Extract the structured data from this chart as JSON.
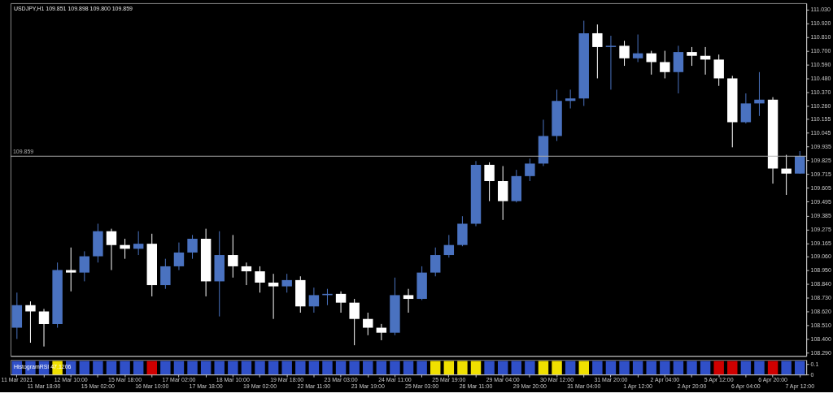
{
  "chart_data": [
    {
      "type": "candlestick",
      "title": "USDJPY,H1  109.851 109.898 109.800 109.859",
      "categories": [
        null,
        null,
        null,
        null,
        null,
        null,
        null,
        null,
        null,
        null,
        null,
        null,
        null,
        null,
        null,
        null,
        null,
        null,
        null,
        null,
        null,
        null,
        null,
        null,
        null,
        null,
        null,
        null,
        null,
        null,
        null,
        null,
        null,
        null,
        null,
        null,
        null,
        null,
        null,
        null,
        null,
        null,
        null,
        null,
        null,
        null,
        null,
        null,
        null,
        null,
        null,
        null,
        null,
        null,
        null,
        null,
        null,
        null,
        null
      ],
      "ohlc": [
        [
          108.49,
          108.77,
          108.4,
          108.67
        ],
        [
          108.67,
          108.7,
          108.37,
          108.62
        ],
        [
          108.62,
          108.64,
          108.34,
          108.52
        ],
        [
          108.52,
          109.01,
          108.49,
          108.95
        ],
        [
          108.95,
          109.13,
          108.78,
          108.93
        ],
        [
          108.93,
          109.1,
          108.86,
          109.06
        ],
        [
          109.06,
          109.32,
          109.01,
          109.26
        ],
        [
          109.26,
          109.28,
          108.95,
          109.15
        ],
        [
          109.15,
          109.2,
          109.04,
          109.12
        ],
        [
          109.12,
          109.26,
          109.07,
          109.16
        ],
        [
          109.16,
          109.24,
          108.74,
          108.83
        ],
        [
          108.83,
          109.04,
          108.8,
          108.98
        ],
        [
          108.98,
          109.17,
          108.95,
          109.09
        ],
        [
          109.09,
          109.23,
          109.04,
          109.2
        ],
        [
          109.2,
          109.28,
          108.74,
          108.86
        ],
        [
          108.86,
          109.26,
          108.58,
          109.07
        ],
        [
          109.07,
          109.23,
          108.89,
          108.98
        ],
        [
          108.98,
          109.01,
          108.83,
          108.94
        ],
        [
          108.94,
          108.98,
          108.77,
          108.85
        ],
        [
          108.85,
          108.92,
          108.56,
          108.82
        ],
        [
          108.82,
          108.92,
          108.77,
          108.87
        ],
        [
          108.87,
          108.9,
          108.61,
          108.66
        ],
        [
          108.66,
          108.81,
          108.61,
          108.75
        ],
        [
          108.75,
          108.8,
          108.67,
          108.76
        ],
        [
          108.76,
          108.78,
          108.61,
          108.69
        ],
        [
          108.69,
          108.72,
          108.35,
          108.56
        ],
        [
          108.56,
          108.61,
          108.43,
          108.49
        ],
        [
          108.49,
          108.52,
          108.39,
          108.45
        ],
        [
          108.45,
          108.89,
          108.43,
          108.75
        ],
        [
          108.75,
          108.8,
          108.61,
          108.72
        ],
        [
          108.72,
          108.98,
          108.71,
          108.93
        ],
        [
          108.93,
          109.13,
          108.9,
          109.07
        ],
        [
          109.07,
          109.23,
          109.05,
          109.15
        ],
        [
          109.15,
          109.38,
          109.14,
          109.32
        ],
        [
          109.32,
          109.82,
          109.3,
          109.79
        ],
        [
          109.79,
          109.81,
          109.5,
          109.66
        ],
        [
          109.66,
          109.78,
          109.35,
          109.5
        ],
        [
          109.5,
          109.75,
          109.49,
          109.7
        ],
        [
          109.7,
          109.84,
          109.66,
          109.8
        ],
        [
          109.8,
          110.15,
          109.78,
          110.02
        ],
        [
          110.02,
          110.39,
          109.98,
          110.3
        ],
        [
          110.3,
          110.39,
          110.24,
          110.32
        ],
        [
          110.32,
          110.94,
          110.26,
          110.84
        ],
        [
          110.84,
          110.91,
          110.48,
          110.73
        ],
        [
          110.73,
          110.82,
          110.39,
          110.74
        ],
        [
          110.74,
          110.78,
          110.58,
          110.64
        ],
        [
          110.64,
          110.83,
          110.61,
          110.68
        ],
        [
          110.68,
          110.7,
          110.51,
          110.61
        ],
        [
          110.61,
          110.7,
          110.48,
          110.53
        ],
        [
          110.53,
          110.74,
          110.36,
          110.69
        ],
        [
          110.69,
          110.73,
          110.58,
          110.66
        ],
        [
          110.66,
          110.73,
          110.51,
          110.63
        ],
        [
          110.63,
          110.67,
          110.42,
          110.48
        ],
        [
          110.48,
          110.5,
          109.93,
          110.13
        ],
        [
          110.13,
          110.36,
          110.12,
          110.28
        ],
        [
          110.28,
          110.53,
          110.18,
          110.31
        ],
        [
          110.31,
          110.33,
          109.64,
          109.76
        ],
        [
          109.76,
          109.87,
          109.55,
          109.72
        ],
        [
          109.72,
          109.9,
          109.72,
          109.859
        ]
      ],
      "colors": [
        "#4a72c0",
        "#ffffff",
        "#ffffff",
        "#4a72c0",
        "#ffffff",
        "#4a72c0",
        "#4a72c0",
        "#ffffff",
        "#ffffff",
        "#4a72c0",
        "#ffffff",
        "#4a72c0",
        "#4a72c0",
        "#4a72c0",
        "#ffffff",
        "#4a72c0",
        "#ffffff",
        "#ffffff",
        "#ffffff",
        "#ffffff",
        "#4a72c0",
        "#ffffff",
        "#4a72c0",
        "#4a72c0",
        "#ffffff",
        "#ffffff",
        "#ffffff",
        "#ffffff",
        "#4a72c0",
        "#ffffff",
        "#4a72c0",
        "#4a72c0",
        "#4a72c0",
        "#4a72c0",
        "#4a72c0",
        "#ffffff",
        "#ffffff",
        "#4a72c0",
        "#4a72c0",
        "#4a72c0",
        "#4a72c0",
        "#4a72c0",
        "#4a72c0",
        "#ffffff",
        "#4a72c0",
        "#ffffff",
        "#4a72c0",
        "#ffffff",
        "#ffffff",
        "#4a72c0",
        "#ffffff",
        "#ffffff",
        "#ffffff",
        "#ffffff",
        "#4a72c0",
        "#4a72c0",
        "#ffffff",
        "#ffffff",
        "#4a72c0"
      ],
      "ylim": [
        108.265,
        111.08
      ],
      "yticks": [
        {
          "value": 108.29,
          "label": "108.290"
        },
        {
          "value": 108.4,
          "label": "108.400"
        },
        {
          "value": 108.51,
          "label": "108.510"
        },
        {
          "value": 108.62,
          "label": "108.620"
        },
        {
          "value": 108.73,
          "label": "108.730"
        },
        {
          "value": 108.84,
          "label": "108.840"
        },
        {
          "value": 108.95,
          "label": "108.950"
        },
        {
          "value": 109.06,
          "label": "109.060"
        },
        {
          "value": 109.165,
          "label": "109.165"
        },
        {
          "value": 109.275,
          "label": "109.275"
        },
        {
          "value": 109.385,
          "label": "109.385"
        },
        {
          "value": 109.495,
          "label": "109.495"
        },
        {
          "value": 109.605,
          "label": "109.605"
        },
        {
          "value": 109.715,
          "label": "109.715"
        },
        {
          "value": 109.825,
          "label": "109.825"
        },
        {
          "value": 109.935,
          "label": "109.935"
        },
        {
          "value": 110.045,
          "label": "110.045"
        },
        {
          "value": 110.155,
          "label": "110.155"
        },
        {
          "value": 110.26,
          "label": "110.260"
        },
        {
          "value": 110.37,
          "label": "110.370"
        },
        {
          "value": 110.48,
          "label": "110.480"
        },
        {
          "value": 110.59,
          "label": "110.590"
        },
        {
          "value": 110.7,
          "label": "110.700"
        },
        {
          "value": 110.81,
          "label": "110.810"
        },
        {
          "value": 110.92,
          "label": "110.920"
        },
        {
          "value": 111.03,
          "label": "111.030"
        }
      ],
      "ref_lines": [
        {
          "axis": "y",
          "value": 109.859,
          "label": "109.859",
          "color": "#b0b0b0"
        }
      ],
      "tick_labels": "y",
      "grid": false
    },
    {
      "type": "bar",
      "title": "HistogramRSI 47.1206",
      "categories": [
        "11 Mar 2021",
        null,
        "11 Mar 18:00",
        null,
        "12 Mar 10:00",
        null,
        "15 Mar 02:00",
        null,
        "15 Mar 18:00",
        null,
        "16 Mar 10:00",
        null,
        "17 Mar 02:00",
        null,
        "17 Mar 18:00",
        null,
        "18 Mar 10:00",
        null,
        "19 Mar 02:00",
        null,
        "19 Mar 18:00",
        null,
        "22 Mar 11:00",
        null,
        "23 Mar 03:00",
        null,
        "23 Mar 19:00",
        null,
        "24 Mar 11:00",
        null,
        "25 Mar 03:00",
        null,
        "25 Mar 19:00",
        null,
        "26 Mar 11:00",
        null,
        "29 Mar 04:00",
        null,
        "29 Mar 20:00",
        null,
        "30 Mar 12:00",
        null,
        "31 Mar 04:00",
        null,
        "31 Mar 20:00",
        null,
        "1 Apr 12:00",
        null,
        "2 Apr 04:00",
        null,
        "2 Apr 20:00",
        null,
        "5 Apr 12:00",
        null,
        "6 Apr 04:00",
        null,
        "6 Apr 20:00",
        null,
        "7 Apr 12:00"
      ],
      "values": [
        0.13,
        0.13,
        0.13,
        0.13,
        0.13,
        0.13,
        0.13,
        0.13,
        0.13,
        0.13,
        0.13,
        0.13,
        0.13,
        0.13,
        0.13,
        0.13,
        0.13,
        0.13,
        0.13,
        0.13,
        0.13,
        0.13,
        0.13,
        0.13,
        0.13,
        0.13,
        0.13,
        0.13,
        0.13,
        0.13,
        0.13,
        0.13,
        0.13,
        0.13,
        0.13,
        0.13,
        0.13,
        0.13,
        0.13,
        0.13,
        0.13,
        0.13,
        0.13,
        0.13,
        0.13,
        0.13,
        0.13,
        0.13,
        0.13,
        0.13,
        0.13,
        0.13,
        0.13,
        0.13,
        0.13,
        0.13,
        0.13,
        0.13,
        0.13
      ],
      "colors": [
        "#3050c8",
        "#3050c8",
        "#3050c8",
        "#f0e000",
        "#3050c8",
        "#3050c8",
        "#3050c8",
        "#3050c8",
        "#3050c8",
        "#3050c8",
        "#d00000",
        "#3050c8",
        "#3050c8",
        "#3050c8",
        "#3050c8",
        "#3050c8",
        "#3050c8",
        "#3050c8",
        "#3050c8",
        "#3050c8",
        "#3050c8",
        "#3050c8",
        "#3050c8",
        "#3050c8",
        "#3050c8",
        "#3050c8",
        "#3050c8",
        "#3050c8",
        "#3050c8",
        "#3050c8",
        "#3050c8",
        "#f0e000",
        "#f0e000",
        "#f0e000",
        "#f0e000",
        "#3050c8",
        "#3050c8",
        "#3050c8",
        "#3050c8",
        "#f0e000",
        "#f0e000",
        "#3050c8",
        "#f0e000",
        "#3050c8",
        "#3050c8",
        "#3050c8",
        "#3050c8",
        "#3050c8",
        "#3050c8",
        "#3050c8",
        "#3050c8",
        "#3050c8",
        "#d00000",
        "#d00000",
        "#3050c8",
        "#3050c8",
        "#d00000",
        "#3050c8",
        "#3050c8"
      ],
      "ylim": [
        0,
        0.14
      ],
      "yticks": [
        0.1,
        0
      ],
      "grid": false
    }
  ]
}
